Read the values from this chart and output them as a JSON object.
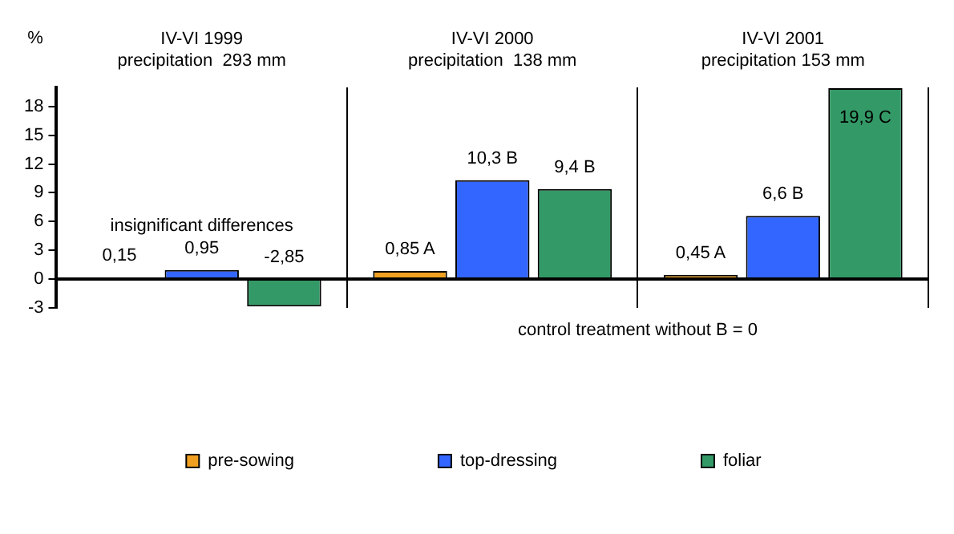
{
  "chart_data": {
    "type": "bar",
    "ylabel": "%",
    "categories": [
      "IV-VI 1999\nprecipitation  293 mm",
      "IV-VI 2000\nprecipitation  138 mm",
      "IV-VI 2001\nprecipitation 153 mm"
    ],
    "series": [
      {
        "name": "pre-sowing",
        "color": "#f0a020",
        "values": [
          0.15,
          0.85,
          0.45
        ],
        "value_labels": [
          "0,15",
          "0,85 A",
          "0,45 A"
        ]
      },
      {
        "name": "top-dressing",
        "color": "#3366ff",
        "values": [
          0.95,
          10.3,
          6.6
        ],
        "value_labels": [
          "0,95",
          "10,3 B",
          "6,6 B"
        ]
      },
      {
        "name": "foliar",
        "color": "#339966",
        "values": [
          -2.85,
          9.4,
          19.9
        ],
        "value_labels": [
          "-2,85",
          "9,4 B",
          "19,9 C"
        ]
      }
    ],
    "ylim": [
      -3,
      20
    ],
    "yticks": [
      -3,
      0,
      3,
      6,
      9,
      12,
      15,
      18
    ],
    "grid": "x",
    "legend": "bottom",
    "annotations": [
      "insignificant differences",
      "control treatment without B = 0"
    ]
  }
}
